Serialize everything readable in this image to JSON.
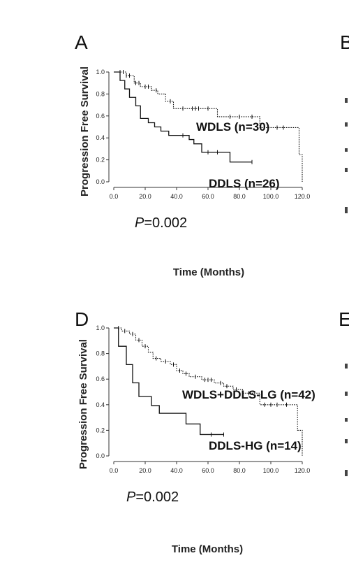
{
  "chart_data": [
    {
      "type": "line",
      "panel": "A",
      "xlabel": "Time (Months)",
      "ylabel": "Progression  Free Survival",
      "xlim": [
        0,
        120
      ],
      "ylim": [
        0,
        1
      ],
      "x_ticks": [
        "0.0",
        "20.0",
        "40.0",
        "60.0",
        "80.0",
        "100.0",
        "120.0"
      ],
      "y_ticks": [
        "0.0",
        "0.2",
        "0.4",
        "0.6",
        "0.8",
        "1.0"
      ],
      "p_prefix": "P",
      "p_value": "=0.002",
      "series": [
        {
          "name": "WDLS  (n=30)",
          "style": "dotted",
          "steps": [
            [
              0,
              1.0
            ],
            [
              8,
              0.967
            ],
            [
              13,
              0.9
            ],
            [
              17,
              0.867
            ],
            [
              24,
              0.833
            ],
            [
              28,
              0.8
            ],
            [
              33,
              0.733
            ],
            [
              38,
              0.667
            ],
            [
              66,
              0.593
            ],
            [
              93,
              0.494
            ],
            [
              118,
              0.247
            ],
            [
              120,
              0.0
            ]
          ],
          "end": 120,
          "censor": [
            4,
            6,
            8,
            10,
            14,
            16,
            20,
            22,
            27,
            36,
            44,
            50,
            52,
            54,
            60,
            74,
            80,
            88,
            104,
            108
          ]
        },
        {
          "name": "DDLS  (n=26)",
          "style": "solid",
          "steps": [
            [
              0,
              1.0
            ],
            [
              4,
              0.923
            ],
            [
              7,
              0.846
            ],
            [
              10,
              0.769
            ],
            [
              14,
              0.692
            ],
            [
              17,
              0.577
            ],
            [
              22,
              0.538
            ],
            [
              26,
              0.5
            ],
            [
              30,
              0.462
            ],
            [
              35,
              0.423
            ],
            [
              48,
              0.385
            ],
            [
              51,
              0.346
            ],
            [
              56,
              0.269
            ],
            [
              74,
              0.18
            ]
          ],
          "end": 88,
          "censor": [
            44,
            60,
            66,
            88
          ]
        }
      ]
    },
    {
      "type": "line",
      "panel": "D",
      "xlabel": "Time (Months)",
      "ylabel": "Progression  Free Survival",
      "xlim": [
        0,
        120
      ],
      "ylim": [
        0,
        1
      ],
      "x_ticks": [
        "0.0",
        "20.0",
        "40.0",
        "60.0",
        "80.0",
        "100.0",
        "120.0"
      ],
      "y_ticks": [
        "0.0",
        "0.2",
        "0.4",
        "0.6",
        "0.8",
        "1.0"
      ],
      "p_prefix": "P",
      "p_value": "=0.002",
      "series": [
        {
          "name": "WDLS+DDLS-LG  (n=42)",
          "style": "dotted",
          "steps": [
            [
              0,
              1.0
            ],
            [
              5,
              0.976
            ],
            [
              10,
              0.952
            ],
            [
              14,
              0.905
            ],
            [
              18,
              0.857
            ],
            [
              22,
              0.81
            ],
            [
              25,
              0.762
            ],
            [
              30,
              0.738
            ],
            [
              36,
              0.714
            ],
            [
              40,
              0.667
            ],
            [
              44,
              0.643
            ],
            [
              48,
              0.619
            ],
            [
              56,
              0.595
            ],
            [
              64,
              0.57
            ],
            [
              70,
              0.545
            ],
            [
              76,
              0.519
            ],
            [
              82,
              0.49
            ],
            [
              93,
              0.4
            ],
            [
              117,
              0.2
            ],
            [
              120,
              0.0
            ]
          ],
          "end": 120,
          "censor": [
            3,
            7,
            12,
            16,
            20,
            27,
            33,
            38,
            42,
            46,
            52,
            58,
            60,
            62,
            68,
            72,
            78,
            86,
            96,
            100,
            104,
            110
          ]
        },
        {
          "name": "DDLS-HG  (n=14)",
          "style": "solid",
          "steps": [
            [
              0,
              1.0
            ],
            [
              3,
              0.857
            ],
            [
              8,
              0.714
            ],
            [
              12,
              0.571
            ],
            [
              16,
              0.464
            ],
            [
              24,
              0.393
            ],
            [
              29,
              0.333
            ],
            [
              46,
              0.25
            ],
            [
              55,
              0.167
            ]
          ],
          "end": 70,
          "censor": [
            62,
            70
          ]
        }
      ]
    }
  ],
  "partial_letters": [
    "B",
    "E"
  ]
}
